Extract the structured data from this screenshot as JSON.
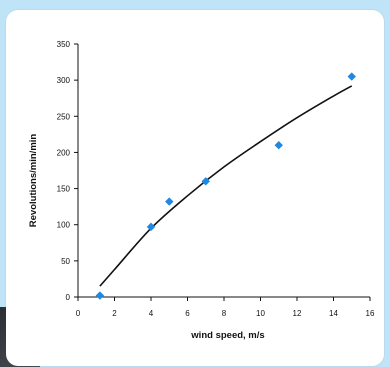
{
  "chart_data": {
    "type": "scatter",
    "title": "",
    "xlabel": "wind speed, m/s",
    "ylabel": "Revolutions/min/min",
    "xlim": [
      0,
      16
    ],
    "ylim": [
      0,
      350
    ],
    "xticks": [
      0,
      2,
      4,
      6,
      8,
      10,
      12,
      14,
      16
    ],
    "yticks": [
      0,
      50,
      100,
      150,
      200,
      250,
      300,
      350
    ],
    "grid": false,
    "points": [
      {
        "x": 1.2,
        "y": 2
      },
      {
        "x": 4.0,
        "y": 97
      },
      {
        "x": 5.0,
        "y": 132
      },
      {
        "x": 7.0,
        "y": 160
      },
      {
        "x": 11.0,
        "y": 210
      },
      {
        "x": 15.0,
        "y": 305
      }
    ],
    "trendline": {
      "type": "power",
      "points": [
        {
          "x": 1.2,
          "y": 15
        },
        {
          "x": 2,
          "y": 38
        },
        {
          "x": 4,
          "y": 95
        },
        {
          "x": 6,
          "y": 140
        },
        {
          "x": 8,
          "y": 180
        },
        {
          "x": 10,
          "y": 215
        },
        {
          "x": 12,
          "y": 248
        },
        {
          "x": 14,
          "y": 278
        },
        {
          "x": 15,
          "y": 292
        }
      ]
    },
    "colors": {
      "marker": "#1e88e5",
      "trendline": "#111111",
      "axis": "#111111"
    }
  }
}
